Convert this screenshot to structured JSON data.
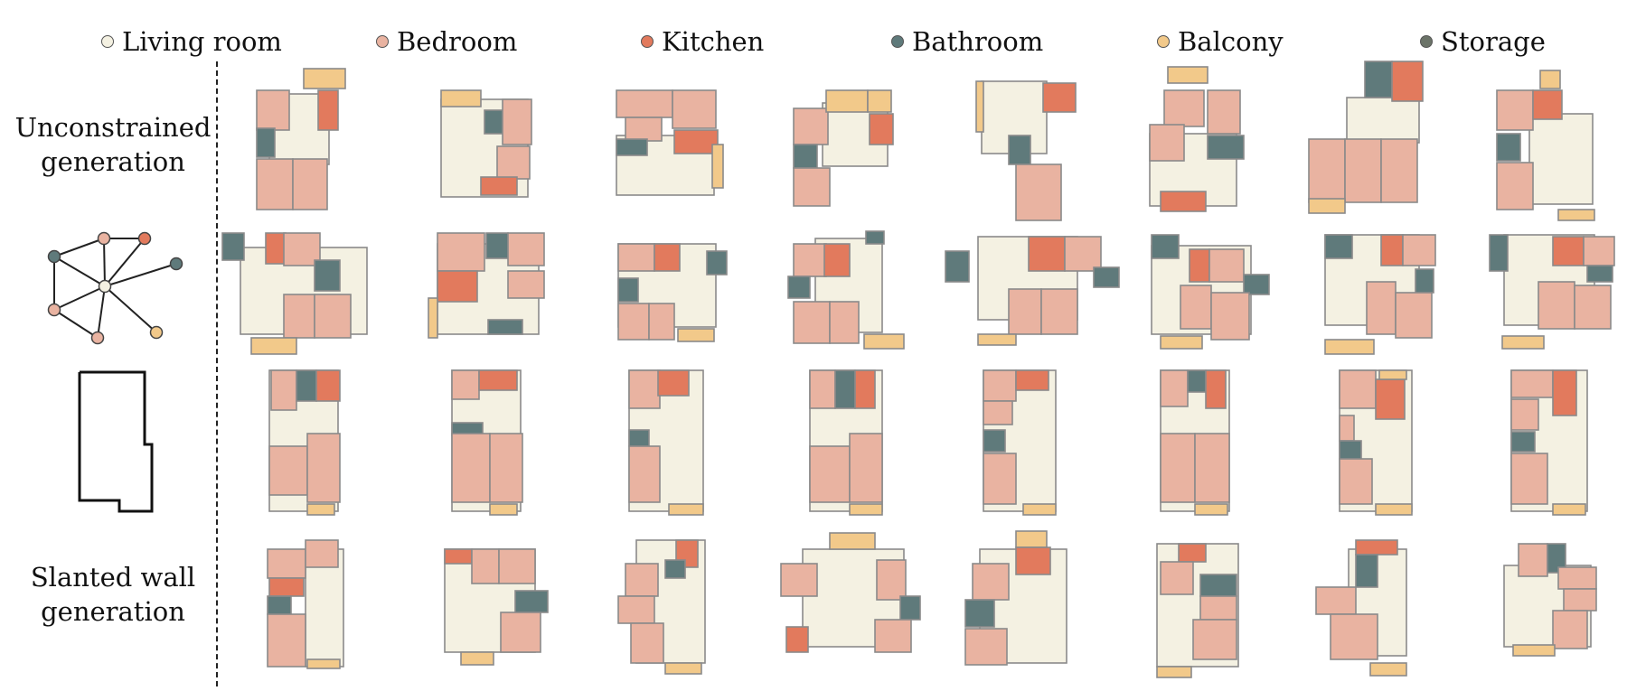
{
  "legend": [
    {
      "label": "Living room",
      "color": "#f4f1e2"
    },
    {
      "label": "Bedroom",
      "color": "#e9b3a1"
    },
    {
      "label": "Kitchen",
      "color": "#e27a5d"
    },
    {
      "label": "Bathroom",
      "color": "#5f7a7b"
    },
    {
      "label": "Balcony",
      "color": "#f2c98a"
    },
    {
      "label": "Storage",
      "color": "#6b7368"
    }
  ],
  "row_labels": {
    "unconstrained_line1": "Unconstrained",
    "unconstrained_line2": "generation",
    "slanted_line1": "Slanted wall",
    "slanted_line2": "generation"
  },
  "row_condition_icons": [
    "bubble-graph-icon",
    "boundary-outline-icon"
  ],
  "colors": {
    "living": "#f4f1e2",
    "bedroom": "#e9b3a1",
    "kitchen": "#e27a5d",
    "bathroom": "#5f7a7b",
    "balcony": "#f2c98a",
    "wall": "#8a8a8a"
  }
}
